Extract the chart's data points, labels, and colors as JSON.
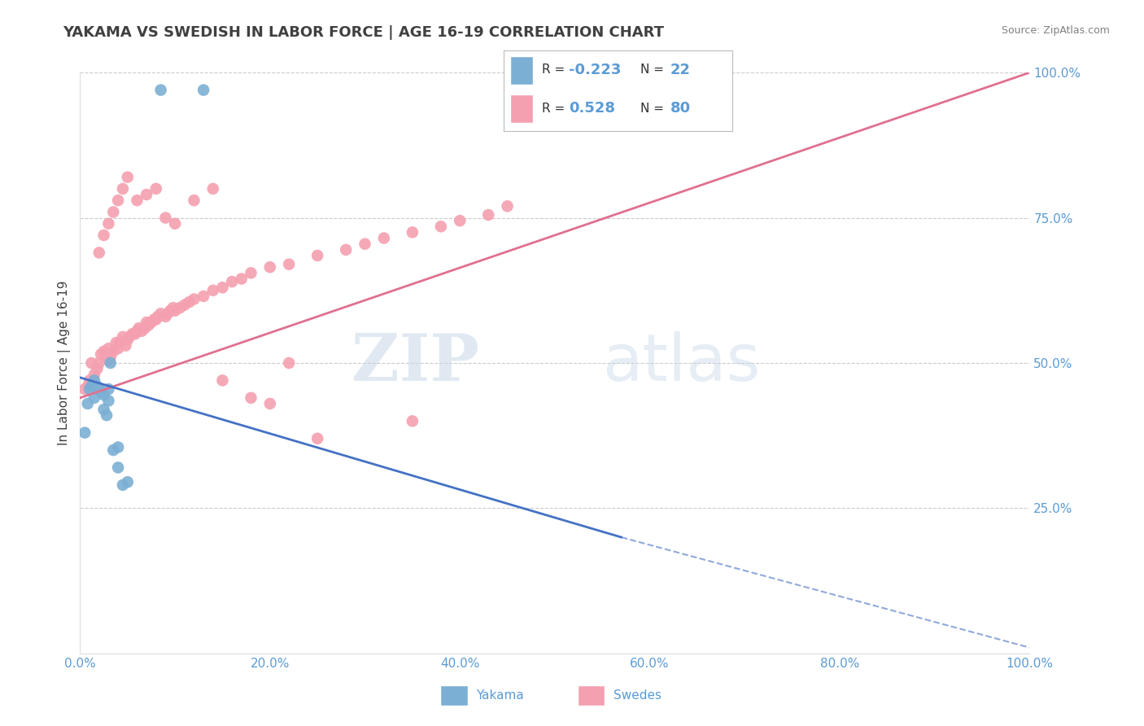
{
  "title": "YAKAMA VS SWEDISH IN LABOR FORCE | AGE 16-19 CORRELATION CHART",
  "ylabel": "In Labor Force | Age 16-19",
  "source": "Source: ZipAtlas.com",
  "watermark_zip": "ZIP",
  "watermark_atlas": "atlas",
  "yakama_color": "#7BAFD4",
  "swedes_color": "#F4A0B0",
  "yakama_line_color": "#4472C4",
  "swedes_line_color": "#E07090",
  "R_yakama": -0.223,
  "N_yakama": 22,
  "R_swedes": 0.528,
  "N_swedes": 80,
  "xlim": [
    0.0,
    1.0
  ],
  "ylim": [
    0.0,
    1.0
  ],
  "xticks": [
    0.0,
    0.2,
    0.4,
    0.6,
    0.8,
    1.0
  ],
  "yticks_right": [
    0.25,
    0.5,
    0.75,
    1.0
  ],
  "background_color": "#ffffff",
  "grid_color": "#cccccc",
  "title_color": "#404040",
  "tick_label_color": "#5B9BD5",
  "legend_R_color": "#5B9BD5",
  "swedes_line_x0": 0.0,
  "swedes_line_y0": 0.44,
  "swedes_line_x1": 1.0,
  "swedes_line_y1": 1.0,
  "yakama_line_solid_x0": 0.0,
  "yakama_line_solid_y0": 0.475,
  "yakama_line_solid_x1": 0.57,
  "yakama_line_solid_y1": 0.2,
  "yakama_line_dash_x0": 0.57,
  "yakama_line_dash_y0": 0.2,
  "yakama_line_dash_x1": 1.0,
  "yakama_line_dash_y1": 0.01,
  "yakama_scatter_x": [
    0.005,
    0.008,
    0.01,
    0.012,
    0.015,
    0.015,
    0.018,
    0.02,
    0.022,
    0.025,
    0.025,
    0.028,
    0.03,
    0.03,
    0.032,
    0.035,
    0.04,
    0.04,
    0.045,
    0.05,
    0.085,
    0.13
  ],
  "yakama_scatter_y": [
    0.38,
    0.43,
    0.455,
    0.46,
    0.44,
    0.47,
    0.46,
    0.455,
    0.45,
    0.445,
    0.42,
    0.41,
    0.435,
    0.455,
    0.5,
    0.35,
    0.355,
    0.32,
    0.29,
    0.295,
    0.97,
    0.97
  ],
  "swedes_scatter_x": [
    0.005,
    0.008,
    0.01,
    0.012,
    0.015,
    0.018,
    0.02,
    0.022,
    0.025,
    0.028,
    0.03,
    0.03,
    0.032,
    0.035,
    0.038,
    0.04,
    0.042,
    0.045,
    0.048,
    0.05,
    0.052,
    0.055,
    0.058,
    0.06,
    0.062,
    0.065,
    0.068,
    0.07,
    0.072,
    0.075,
    0.078,
    0.08,
    0.082,
    0.085,
    0.09,
    0.092,
    0.095,
    0.098,
    0.1,
    0.105,
    0.11,
    0.115,
    0.12,
    0.13,
    0.14,
    0.15,
    0.16,
    0.17,
    0.18,
    0.2,
    0.22,
    0.25,
    0.28,
    0.3,
    0.32,
    0.35,
    0.38,
    0.4,
    0.43,
    0.45,
    0.02,
    0.025,
    0.03,
    0.035,
    0.04,
    0.045,
    0.05,
    0.06,
    0.07,
    0.08,
    0.09,
    0.1,
    0.12,
    0.14,
    0.25,
    0.35,
    0.2,
    0.15,
    0.18,
    0.22
  ],
  "swedes_scatter_y": [
    0.455,
    0.46,
    0.47,
    0.5,
    0.48,
    0.49,
    0.5,
    0.515,
    0.52,
    0.51,
    0.505,
    0.525,
    0.51,
    0.52,
    0.535,
    0.525,
    0.535,
    0.545,
    0.53,
    0.54,
    0.545,
    0.55,
    0.55,
    0.555,
    0.56,
    0.555,
    0.56,
    0.57,
    0.565,
    0.57,
    0.575,
    0.575,
    0.58,
    0.585,
    0.58,
    0.585,
    0.59,
    0.595,
    0.59,
    0.595,
    0.6,
    0.605,
    0.61,
    0.615,
    0.625,
    0.63,
    0.64,
    0.645,
    0.655,
    0.665,
    0.67,
    0.685,
    0.695,
    0.705,
    0.715,
    0.725,
    0.735,
    0.745,
    0.755,
    0.77,
    0.69,
    0.72,
    0.74,
    0.76,
    0.78,
    0.8,
    0.82,
    0.78,
    0.79,
    0.8,
    0.75,
    0.74,
    0.78,
    0.8,
    0.37,
    0.4,
    0.43,
    0.47,
    0.44,
    0.5
  ]
}
